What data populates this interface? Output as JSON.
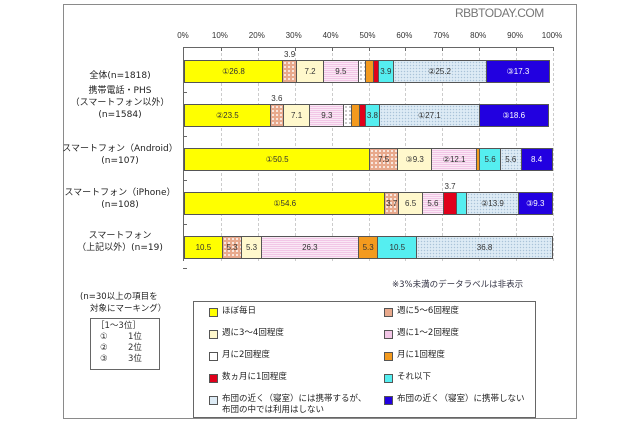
{
  "watermark": "RBBTODAY.COM",
  "chart_data": {
    "type": "bar",
    "orientation": "horizontal",
    "stacked": true,
    "normalized_percent": true,
    "xlim": [
      0,
      100
    ],
    "x_ticks": [
      "0%",
      "10%",
      "20%",
      "30%",
      "40%",
      "50%",
      "60%",
      "70%",
      "80%",
      "90%",
      "100%"
    ],
    "grid": true,
    "categories": [
      "全体(n=1818)",
      "携帯電話・PHS（スマートフォン以外）(n=1584)",
      "スマートフォン（Android）(n=107)",
      "スマートフォン（iPhone）(n=108)",
      "スマートフォン（上記以外）(n=19)"
    ],
    "series": [
      {
        "name": "ほぼ毎日",
        "color": "#FFFF00",
        "values": [
          26.8,
          23.5,
          50.5,
          54.6,
          10.5
        ]
      },
      {
        "name": "週に5～6回程度",
        "color": "#E8A98C",
        "values": [
          3.9,
          3.6,
          7.5,
          3.7,
          5.3
        ]
      },
      {
        "name": "週に3～4回程度",
        "color": "#FFF8CC",
        "values": [
          7.2,
          7.1,
          9.3,
          6.5,
          5.3
        ]
      },
      {
        "name": "週に1～2回程度",
        "color": "#F2C6E6",
        "values": [
          9.5,
          9.3,
          12.1,
          5.6,
          26.3
        ]
      },
      {
        "name": "月に2回程度",
        "color": "#FFFFFF",
        "values": [
          2.0,
          2.0,
          0.0,
          0.0,
          0.0
        ]
      },
      {
        "name": "月に1回程度",
        "color": "#F39A1E",
        "values": [
          2.2,
          2.3,
          0.9,
          0.0,
          5.3
        ]
      },
      {
        "name": "数ヵ月に1回程度",
        "color": "#E0001B",
        "values": [
          1.3,
          1.5,
          0.0,
          3.7,
          0.0
        ]
      },
      {
        "name": "それ以下",
        "color": "#55EEF0",
        "values": [
          3.9,
          3.8,
          5.6,
          2.7,
          10.5
        ]
      },
      {
        "name": "布団の近く（寝室）には携帯するが、布団の中では利用はしない",
        "color": "#DDEBF5",
        "values": [
          25.2,
          27.1,
          5.6,
          13.9,
          36.8
        ]
      },
      {
        "name": "布団の近く（寝室）に携帯しない",
        "color": "#2200E0",
        "values": [
          17.3,
          18.6,
          8.4,
          9.3,
          0.0
        ]
      }
    ],
    "annotations": "※3%未満のデータラベルは非表示",
    "legend_position": "bottom"
  },
  "axis_labels": [
    "0%",
    "10%",
    "20%",
    "30%",
    "40%",
    "50%",
    "60%",
    "70%",
    "80%",
    "90%",
    "100%"
  ],
  "rows": [
    {
      "label1": "全体(n=1818)",
      "label2": "",
      "label3": ""
    },
    {
      "label1": "携帯電話・PHS",
      "label2": "（スマートフォン以外）",
      "label3": "(n=1584)"
    },
    {
      "label1": "スマートフォン（Android）",
      "label2": "(n=107)",
      "label3": ""
    },
    {
      "label1": "スマートフォン（iPhone）",
      "label2": "(n=108)",
      "label3": ""
    },
    {
      "label1": "スマートフォン",
      "label2": "（上記以外）(n=19)",
      "label3": ""
    }
  ],
  "bars": [
    [
      {
        "v": 26.8,
        "c": "#FFFF00",
        "t": "①26.8"
      },
      {
        "v": 3.9,
        "c": "#E8A98C",
        "t": "",
        "above": "3.9",
        "p": "dots"
      },
      {
        "v": 7.2,
        "c": "#FFF8CC",
        "t": "7.2"
      },
      {
        "v": 9.5,
        "c": "#F2C6E6",
        "t": "9.5",
        "p": "lines"
      },
      {
        "v": 2.0,
        "c": "#FFFFFF",
        "t": "",
        "p": "sparse"
      },
      {
        "v": 2.2,
        "c": "#F39A1E",
        "t": ""
      },
      {
        "v": 1.3,
        "c": "#E0001B",
        "t": ""
      },
      {
        "v": 3.9,
        "c": "#55EEF0",
        "t": "3.9"
      },
      {
        "v": 25.2,
        "c": "#DDEBF5",
        "t": "②25.2",
        "p": "fine"
      },
      {
        "v": 17.3,
        "c": "#2200E0",
        "t": "③17.3",
        "w": true
      }
    ],
    [
      {
        "v": 23.5,
        "c": "#FFFF00",
        "t": "②23.5"
      },
      {
        "v": 3.6,
        "c": "#E8A98C",
        "t": "",
        "above": "3.6",
        "p": "dots"
      },
      {
        "v": 7.1,
        "c": "#FFF8CC",
        "t": "7.1"
      },
      {
        "v": 9.3,
        "c": "#F2C6E6",
        "t": "9.3",
        "p": "lines"
      },
      {
        "v": 2.0,
        "c": "#FFFFFF",
        "t": "",
        "p": "sparse"
      },
      {
        "v": 2.3,
        "c": "#F39A1E",
        "t": ""
      },
      {
        "v": 1.5,
        "c": "#E0001B",
        "t": ""
      },
      {
        "v": 3.8,
        "c": "#55EEF0",
        "t": "3.8"
      },
      {
        "v": 27.1,
        "c": "#DDEBF5",
        "t": "①27.1",
        "p": "fine"
      },
      {
        "v": 18.6,
        "c": "#2200E0",
        "t": "③18.6",
        "w": true
      }
    ],
    [
      {
        "v": 50.5,
        "c": "#FFFF00",
        "t": "①50.5"
      },
      {
        "v": 7.5,
        "c": "#E8A98C",
        "t": "7.5",
        "p": "dots"
      },
      {
        "v": 9.3,
        "c": "#FFF8CC",
        "t": "③9.3"
      },
      {
        "v": 12.1,
        "c": "#F2C6E6",
        "t": "②12.1",
        "p": "lines"
      },
      {
        "v": 0.9,
        "c": "#F39A1E",
        "t": ""
      },
      {
        "v": 5.6,
        "c": "#55EEF0",
        "t": "5.6"
      },
      {
        "v": 5.6,
        "c": "#DDEBF5",
        "t": "5.6",
        "p": "fine"
      },
      {
        "v": 8.4,
        "c": "#2200E0",
        "t": "8.4",
        "w": true
      }
    ],
    [
      {
        "v": 54.6,
        "c": "#FFFF00",
        "t": "①54.6"
      },
      {
        "v": 3.7,
        "c": "#E8A98C",
        "t": "3.7",
        "p": "dots"
      },
      {
        "v": 6.5,
        "c": "#FFF8CC",
        "t": "6.5"
      },
      {
        "v": 5.6,
        "c": "#F2C6E6",
        "t": "5.6",
        "p": "lines"
      },
      {
        "v": 3.7,
        "c": "#E0001B",
        "t": "",
        "above": "3.7"
      },
      {
        "v": 2.7,
        "c": "#55EEF0",
        "t": ""
      },
      {
        "v": 13.9,
        "c": "#DDEBF5",
        "t": "②13.9",
        "p": "fine"
      },
      {
        "v": 9.3,
        "c": "#2200E0",
        "t": "③9.3",
        "w": true
      }
    ],
    [
      {
        "v": 10.5,
        "c": "#FFFF00",
        "t": "10.5"
      },
      {
        "v": 5.3,
        "c": "#E8A98C",
        "t": "5.3",
        "p": "dots"
      },
      {
        "v": 5.3,
        "c": "#FFF8CC",
        "t": "5.3"
      },
      {
        "v": 26.3,
        "c": "#F2C6E6",
        "t": "26.3",
        "p": "lines"
      },
      {
        "v": 5.3,
        "c": "#F39A1E",
        "t": "5.3"
      },
      {
        "v": 10.5,
        "c": "#55EEF0",
        "t": "10.5"
      },
      {
        "v": 36.8,
        "c": "#DDEBF5",
        "t": "36.8",
        "p": "fine"
      }
    ]
  ],
  "note": "※3%未満のデータラベルは非表示",
  "marking_note": {
    "line1": "(n=30以上の項目を",
    "line2": "対象にマーキング）"
  },
  "rank_box": {
    "title": "［1～3位］",
    "items": [
      {
        "mark": "①",
        "label": "1位"
      },
      {
        "mark": "②",
        "label": "2位"
      },
      {
        "mark": "③",
        "label": "3位"
      }
    ]
  },
  "legend": [
    {
      "label": "ほぼ毎日",
      "color": "#FFFF00"
    },
    {
      "label": "週に5～6回程度",
      "color": "#E8A98C"
    },
    {
      "label": "週に3～4回程度",
      "color": "#FFF8CC"
    },
    {
      "label": "週に1～2回程度",
      "color": "#F2C6E6"
    },
    {
      "label": "月に2回程度",
      "color": "#FFFFFF"
    },
    {
      "label": "月に1回程度",
      "color": "#F39A1E"
    },
    {
      "label": "数ヵ月に1回程度",
      "color": "#E0001B"
    },
    {
      "label": "それ以下",
      "color": "#55EEF0"
    },
    {
      "label": "布団の近く（寝室）には携帯するが、",
      "label2": "布団の中では利用はしない",
      "color": "#DDEBF5"
    },
    {
      "label": "布団の近く（寝室）に携帯しない",
      "color": "#2200E0"
    }
  ]
}
